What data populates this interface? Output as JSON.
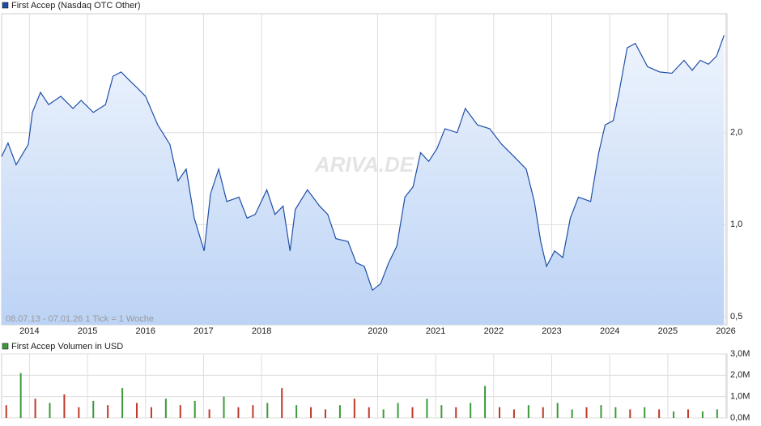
{
  "chart_data": [
    {
      "type": "line",
      "title": "First Accep (Nasdaq OTC Other)",
      "subtitle": "08.07.13 - 07.01.26   1 Tick = 1 Woche",
      "watermark": "ARIVA.DE",
      "log_scale": true,
      "grid": true,
      "xlim": [
        2013.52,
        2026.02
      ],
      "xticks": [
        2014,
        2015,
        2016,
        2017,
        2018,
        2020,
        2021,
        2022,
        2023,
        2024,
        2025,
        2026
      ],
      "ylim": [
        0.47,
        4.9
      ],
      "yticks": [
        {
          "value": 0.5,
          "label": "0,5"
        },
        {
          "value": 1.0,
          "label": "1,0"
        },
        {
          "value": 2.0,
          "label": "2,0"
        }
      ],
      "x": [
        2013.52,
        2013.63,
        2013.77,
        2013.98,
        2014.05,
        2014.19,
        2014.33,
        2014.54,
        2014.75,
        2014.89,
        2015.1,
        2015.31,
        2015.44,
        2015.58,
        2015.72,
        2015.86,
        2016.0,
        2016.21,
        2016.42,
        2016.56,
        2016.7,
        2016.84,
        2017.01,
        2017.12,
        2017.26,
        2017.4,
        2017.61,
        2017.75,
        2017.89,
        2018.09,
        2018.23,
        2018.37,
        2018.49,
        2018.58,
        2018.79,
        2019.0,
        2019.14,
        2019.28,
        2019.49,
        2019.63,
        2019.77,
        2019.91,
        2020.05,
        2020.19,
        2020.33,
        2020.47,
        2020.61,
        2020.74,
        2020.88,
        2021.02,
        2021.16,
        2021.37,
        2021.51,
        2021.72,
        2021.93,
        2022.14,
        2022.35,
        2022.56,
        2022.7,
        2022.81,
        2022.91,
        2023.05,
        2023.19,
        2023.32,
        2023.46,
        2023.67,
        2023.81,
        2023.92,
        2024.06,
        2024.16,
        2024.3,
        2024.44,
        2024.65,
        2024.86,
        2025.07,
        2025.28,
        2025.42,
        2025.56,
        2025.7,
        2025.84,
        2025.97
      ],
      "series": [
        {
          "name": "First Accep (Nasdaq OTC Other)",
          "color": "#1f4fa8",
          "values": [
            1.67,
            1.85,
            1.57,
            1.83,
            2.33,
            2.71,
            2.47,
            2.63,
            2.4,
            2.55,
            2.33,
            2.47,
            3.06,
            3.16,
            2.97,
            2.8,
            2.63,
            2.12,
            1.83,
            1.39,
            1.52,
            1.05,
            0.82,
            1.26,
            1.52,
            1.19,
            1.23,
            1.05,
            1.08,
            1.3,
            1.08,
            1.15,
            0.82,
            1.12,
            1.3,
            1.15,
            1.08,
            0.9,
            0.88,
            0.75,
            0.73,
            0.61,
            0.64,
            0.75,
            0.85,
            1.23,
            1.33,
            1.72,
            1.61,
            1.77,
            2.06,
            2.0,
            2.4,
            2.12,
            2.06,
            1.83,
            1.67,
            1.52,
            1.19,
            0.88,
            0.73,
            0.82,
            0.78,
            1.05,
            1.23,
            1.19,
            1.72,
            2.12,
            2.19,
            2.71,
            3.79,
            3.92,
            3.29,
            3.16,
            3.13,
            3.45,
            3.2,
            3.45,
            3.35,
            3.56,
            4.17
          ]
        }
      ]
    },
    {
      "type": "bar",
      "title": "First Accep Volumen in USD",
      "color": "#3a9a3a",
      "grid": true,
      "xlim": [
        2013.52,
        2026.02
      ],
      "ylim": [
        0,
        3000000
      ],
      "yticks": [
        {
          "value": 0,
          "label": "0,0M"
        },
        {
          "value": 1000000,
          "label": "1,0M"
        },
        {
          "value": 2000000,
          "label": "2,0M"
        },
        {
          "value": 3000000,
          "label": "3,0M"
        }
      ],
      "x": [
        2013.6,
        2013.85,
        2014.1,
        2014.35,
        2014.6,
        2014.85,
        2015.1,
        2015.35,
        2015.6,
        2015.85,
        2016.1,
        2016.35,
        2016.6,
        2016.85,
        2017.1,
        2017.35,
        2017.6,
        2017.85,
        2018.1,
        2018.35,
        2018.6,
        2018.85,
        2019.1,
        2019.35,
        2019.6,
        2019.85,
        2020.1,
        2020.35,
        2020.6,
        2020.85,
        2021.1,
        2021.35,
        2021.6,
        2021.85,
        2022.1,
        2022.35,
        2022.6,
        2022.85,
        2023.1,
        2023.35,
        2023.6,
        2023.85,
        2024.1,
        2024.35,
        2024.6,
        2024.85,
        2025.1,
        2025.35,
        2025.6,
        2025.85
      ],
      "colors": [
        "#c0392b",
        "#3a9a3a",
        "#c0392b",
        "#3a9a3a",
        "#c0392b",
        "#c0392b",
        "#3a9a3a",
        "#c0392b",
        "#3a9a3a",
        "#c0392b",
        "#c0392b",
        "#3a9a3a",
        "#c0392b",
        "#3a9a3a",
        "#c0392b",
        "#3a9a3a",
        "#c0392b",
        "#c0392b",
        "#3a9a3a",
        "#c0392b",
        "#3a9a3a",
        "#c0392b",
        "#c0392b",
        "#3a9a3a",
        "#c0392b",
        "#c0392b",
        "#3a9a3a",
        "#3a9a3a",
        "#c0392b",
        "#3a9a3a",
        "#3a9a3a",
        "#c0392b",
        "#3a9a3a",
        "#3a9a3a",
        "#c0392b",
        "#c0392b",
        "#3a9a3a",
        "#c0392b",
        "#3a9a3a",
        "#3a9a3a",
        "#c0392b",
        "#3a9a3a",
        "#3a9a3a",
        "#c0392b",
        "#3a9a3a",
        "#c0392b",
        "#3a9a3a",
        "#c0392b",
        "#3a9a3a",
        "#3a9a3a"
      ],
      "values": [
        600000,
        2100000,
        900000,
        700000,
        1100000,
        500000,
        800000,
        600000,
        1400000,
        700000,
        500000,
        900000,
        600000,
        800000,
        400000,
        1000000,
        500000,
        600000,
        700000,
        1400000,
        600000,
        500000,
        400000,
        600000,
        900000,
        500000,
        400000,
        700000,
        500000,
        900000,
        600000,
        500000,
        700000,
        1500000,
        500000,
        400000,
        600000,
        500000,
        700000,
        400000,
        500000,
        600000,
        500000,
        400000,
        500000,
        400000,
        300000,
        400000,
        300000,
        400000
      ]
    }
  ]
}
